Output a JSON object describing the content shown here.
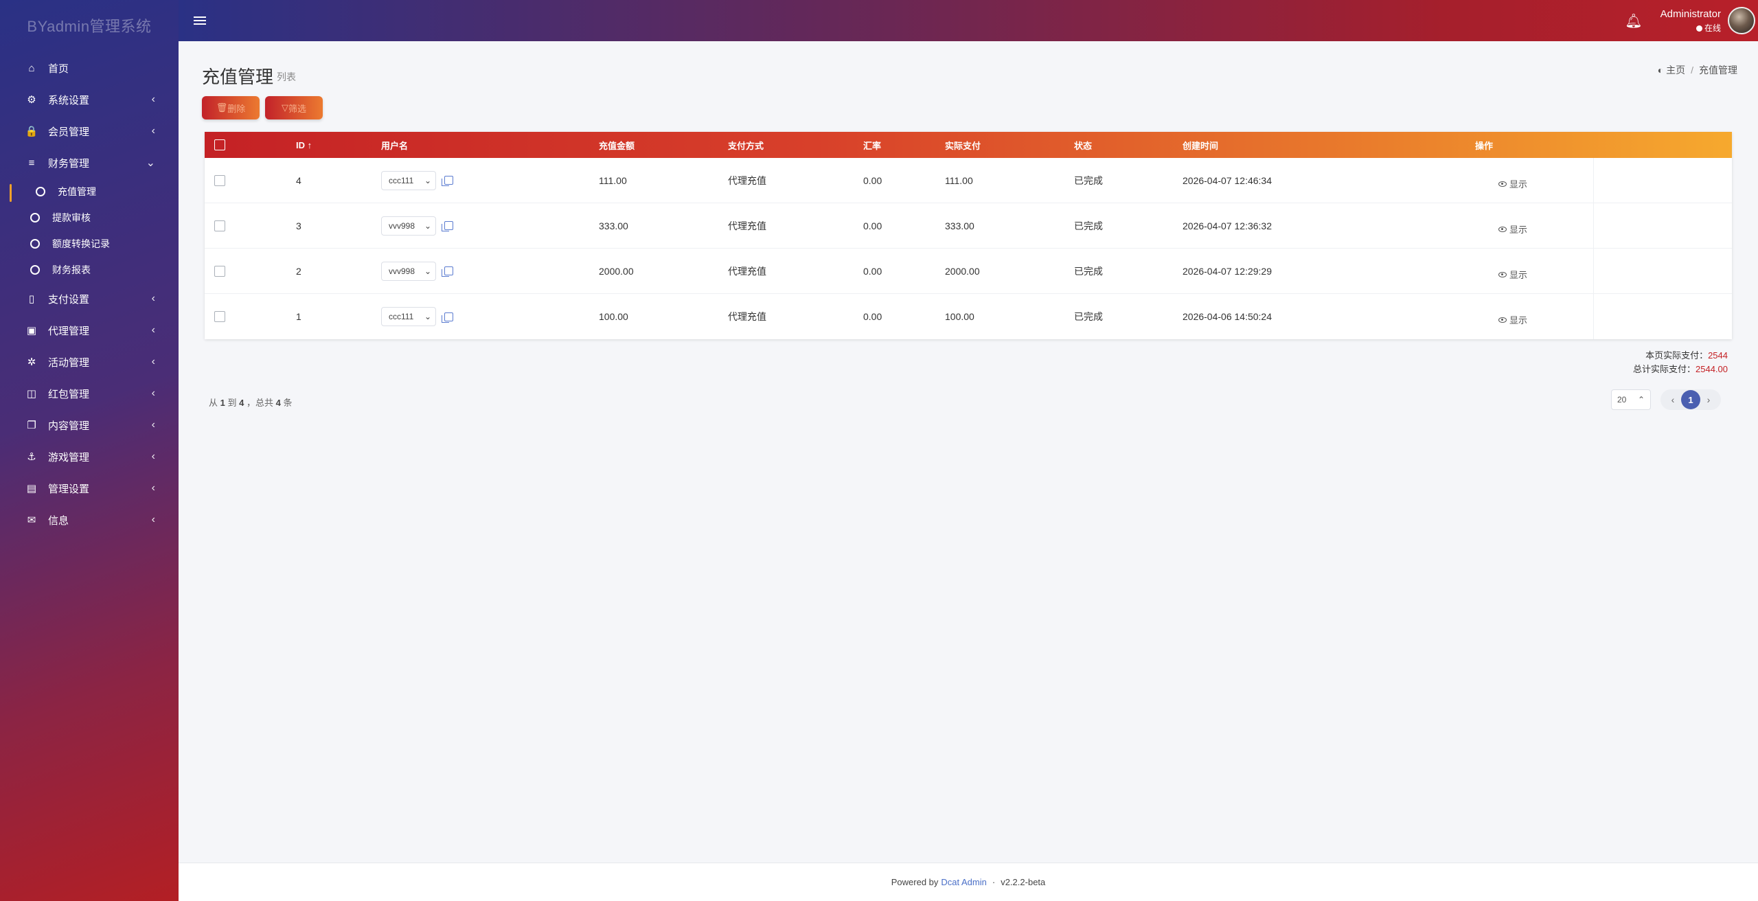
{
  "brand": "BYadmin管理系统",
  "sidebar": {
    "items": [
      {
        "icon": "⌂",
        "label": "首页",
        "arrow": ""
      },
      {
        "icon": "⚙",
        "label": "系统设置",
        "arrow": "‹"
      },
      {
        "icon": "🔒",
        "label": "会员管理",
        "arrow": "‹"
      },
      {
        "icon": "≡",
        "label": "财务管理",
        "arrow": "⌄"
      }
    ],
    "sub_items": [
      {
        "label": "充值管理"
      },
      {
        "label": "提款审核"
      },
      {
        "label": "额度转换记录"
      },
      {
        "label": "财务报表"
      }
    ],
    "items2": [
      {
        "icon": "▯",
        "label": "支付设置",
        "arrow": "‹"
      },
      {
        "icon": "▣",
        "label": "代理管理",
        "arrow": "‹"
      },
      {
        "icon": "✲",
        "label": "活动管理",
        "arrow": "‹"
      },
      {
        "icon": "◫",
        "label": "红包管理",
        "arrow": "‹"
      },
      {
        "icon": "❐",
        "label": "内容管理",
        "arrow": "‹"
      },
      {
        "icon": "⚓",
        "label": "游戏管理",
        "arrow": "‹"
      },
      {
        "icon": "▤",
        "label": "管理设置",
        "arrow": "‹"
      },
      {
        "icon": "✉",
        "label": "信息",
        "arrow": "‹"
      }
    ]
  },
  "topbar": {
    "user_name": "Administrator",
    "user_status": "在线"
  },
  "page": {
    "title": "充值管理",
    "subtitle": "列表",
    "breadcrumb_home": "主页",
    "breadcrumb_current": "充值管理",
    "btn_delete": "删除",
    "btn_filter": "筛选"
  },
  "table": {
    "headers": {
      "id": "ID",
      "sort_arrow": "↑",
      "username": "用户名",
      "amount": "充值金额",
      "pay_method": "支付方式",
      "rate": "汇率",
      "actual": "实际支付",
      "status": "状态",
      "created": "创建时间",
      "action": "操作"
    },
    "rows": [
      {
        "id": "4",
        "user": "ccc111",
        "amount": "111.00",
        "method": "代理充值",
        "rate": "0.00",
        "actual": "111.00",
        "status": "已完成",
        "created": "2026-04-07 12:46:34",
        "action": "显示"
      },
      {
        "id": "3",
        "user": "vvv998",
        "amount": "333.00",
        "method": "代理充值",
        "rate": "0.00",
        "actual": "333.00",
        "status": "已完成",
        "created": "2026-04-07 12:36:32",
        "action": "显示"
      },
      {
        "id": "2",
        "user": "vvv998",
        "amount": "2000.00",
        "method": "代理充值",
        "rate": "0.00",
        "actual": "2000.00",
        "status": "已完成",
        "created": "2026-04-07 12:29:29",
        "action": "显示"
      },
      {
        "id": "1",
        "user": "ccc111",
        "amount": "100.00",
        "method": "代理充值",
        "rate": "0.00",
        "actual": "100.00",
        "status": "已完成",
        "created": "2026-04-06 14:50:24",
        "action": "显示"
      }
    ]
  },
  "totals": {
    "page_label": "本页实际支付：",
    "page_value": "2544",
    "total_label": "总计实际支付：",
    "total_value": "2544.00"
  },
  "pagination": {
    "from_label": "从",
    "from": "1",
    "to_label": "到",
    "to": "4",
    "total_label": "，总共",
    "total": "4",
    "unit": "条",
    "per_page": "20",
    "current_page": "1",
    "prev": "‹",
    "next": "›"
  },
  "footer": {
    "powered": "Powered by",
    "link": "Dcat Admin",
    "sep": "·",
    "version": "v2.2.2-beta"
  },
  "colors": {
    "accent": "#c42125",
    "pager_active": "#4a5fb0",
    "link": "#4a6fc7"
  }
}
